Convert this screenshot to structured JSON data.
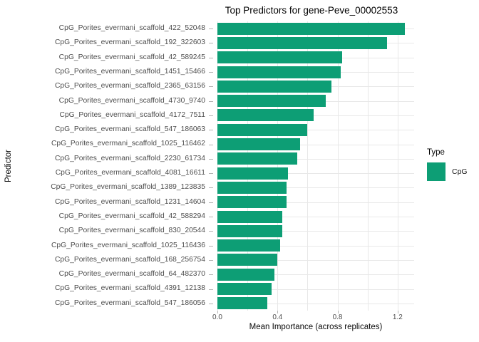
{
  "title": "Top Predictors for gene-Peve_00002553",
  "colors": {
    "bar": "#0D9E75",
    "background": "#FFFFFF",
    "gridline": "#E8E8E8",
    "tick": "#B3B3B3",
    "axis_text": "#4D4D4D",
    "axis_title": "#0A0A0A"
  },
  "chart_data": {
    "type": "bar",
    "orientation": "horizontal",
    "title": "Top Predictors for gene-Peve_00002553",
    "xlabel": "Mean Importance (across replicates)",
    "ylabel": "Predictor",
    "xlim": [
      0,
      1.31
    ],
    "x_ticks": [
      0.0,
      0.4,
      0.8,
      1.2
    ],
    "x_minor_gridlines": [
      0.2,
      0.6,
      1.0
    ],
    "grid": true,
    "bar_color": "#0D9E75",
    "legend": {
      "title": "Type",
      "position": "right",
      "items": [
        {
          "label": "CpG",
          "color": "#0D9E75"
        }
      ]
    },
    "categories": [
      "CpG_Porites_evermani_scaffold_422_52048",
      "CpG_Porites_evermani_scaffold_192_322603",
      "CpG_Porites_evermani_scaffold_42_589245",
      "CpG_Porites_evermani_scaffold_1451_15466",
      "CpG_Porites_evermani_scaffold_2365_63156",
      "CpG_Porites_evermani_scaffold_4730_9740",
      "CpG_Porites_evermani_scaffold_4172_7511",
      "CpG_Porites_evermani_scaffold_547_186063",
      "CpG_Porites_evermani_scaffold_1025_116462",
      "CpG_Porites_evermani_scaffold_2230_61734",
      "CpG_Porites_evermani_scaffold_4081_16611",
      "CpG_Porites_evermani_scaffold_1389_123835",
      "CpG_Porites_evermani_scaffold_1231_14604",
      "CpG_Porites_evermani_scaffold_42_588294",
      "CpG_Porites_evermani_scaffold_830_20544",
      "CpG_Porites_evermani_scaffold_1025_116436",
      "CpG_Porites_evermani_scaffold_168_256754",
      "CpG_Porites_evermani_scaffold_64_482370",
      "CpG_Porites_evermani_scaffold_4391_12138",
      "CpG_Porites_evermani_scaffold_547_186056"
    ],
    "values": [
      1.25,
      1.13,
      0.83,
      0.82,
      0.76,
      0.72,
      0.64,
      0.6,
      0.55,
      0.53,
      0.47,
      0.46,
      0.46,
      0.43,
      0.43,
      0.42,
      0.4,
      0.38,
      0.36,
      0.33
    ]
  }
}
